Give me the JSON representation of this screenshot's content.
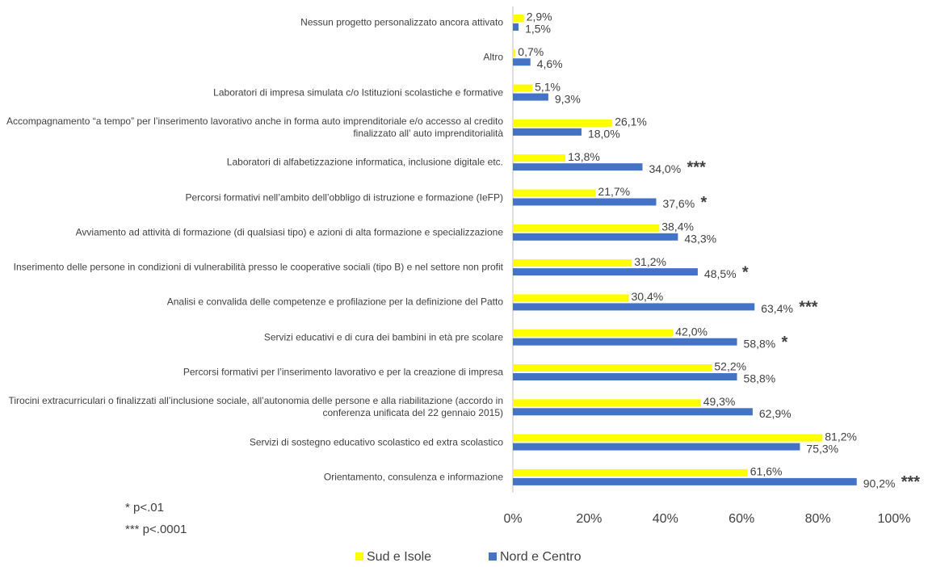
{
  "chart_data": {
    "type": "bar",
    "orientation": "horizontal",
    "categories": [
      "Nessun progetto personalizzato ancora attivato",
      "Altro",
      "Laboratori di impresa simulata c/o Istituzioni scolastiche e formative",
      "Accompagnamento “a tempo” per l’inserimento lavorativo anche in forma auto imprenditoriale e/o accesso al credito finalizzato all’ auto imprenditorialità",
      "Laboratori di alfabetizzazione informatica, inclusione digitale etc.",
      "Percorsi formativi nell’ambito dell’obbligo di istruzione e formazione (IeFP)",
      "Avviamento ad attività di formazione (di qualsiasi tipo) e azioni di alta formazione e specializzazione",
      "Inserimento delle persone in condizioni di vulnerabilità presso le cooperative sociali (tipo B) e nel settore non profit",
      "Analisi e convalida delle competenze e profilazione per la definizione del Patto",
      "Servizi educativi e di cura dei bambini in età pre scolare",
      "Percorsi formativi per l’inserimento lavorativo e per la creazione di impresa",
      "Tirocini extracurriculari o finalizzati all’inclusione sociale, all’autonomia delle persone e alla riabilitazione (accordo in conferenza unificata del 22 gennaio 2015)",
      "Servizi di sostegno educativo scolastico ed extra scolastico",
      "Orientamento, consulenza e informazione"
    ],
    "series": [
      {
        "name": "Sud e Isole",
        "color": "#ffff00",
        "values": [
          2.9,
          0.7,
          5.1,
          26.1,
          13.8,
          21.7,
          38.4,
          31.2,
          30.4,
          42.0,
          52.2,
          49.3,
          81.2,
          61.6
        ],
        "value_labels": [
          "2,9%",
          "0,7%",
          "5,1%",
          "26,1%",
          "13,8%",
          "21,7%",
          "38,4%",
          "31,2%",
          "30,4%",
          "42,0%",
          "52,2%",
          "49,3%",
          "81,2%",
          "61,6%"
        ]
      },
      {
        "name": "Nord e Centro",
        "color": "#4472c4",
        "values": [
          1.5,
          4.6,
          9.3,
          18.0,
          34.0,
          37.6,
          43.3,
          48.5,
          63.4,
          58.8,
          58.8,
          62.9,
          75.3,
          90.2
        ],
        "value_labels": [
          "1,5%",
          "4,6%",
          "9,3%",
          "18,0%",
          "34,0%",
          "37,6%",
          "43,3%",
          "48,5%",
          "63,4%",
          "58,8%",
          "58,8%",
          "62,9%",
          "75,3%",
          "90,2%"
        ]
      }
    ],
    "significance": [
      null,
      null,
      null,
      null,
      "***",
      "*",
      null,
      "*",
      "***",
      "*",
      null,
      null,
      null,
      "***"
    ],
    "footnotes": [
      "* p<.01",
      "*** p<.0001"
    ],
    "xlim": [
      0,
      100
    ],
    "xticks": [
      {
        "value": 0,
        "label": "0%"
      },
      {
        "value": 20,
        "label": "20%"
      },
      {
        "value": 40,
        "label": "40%"
      },
      {
        "value": 60,
        "label": "60%"
      },
      {
        "value": 80,
        "label": "80%"
      },
      {
        "value": 100,
        "label": "100%"
      }
    ],
    "legend": "bottom"
  }
}
